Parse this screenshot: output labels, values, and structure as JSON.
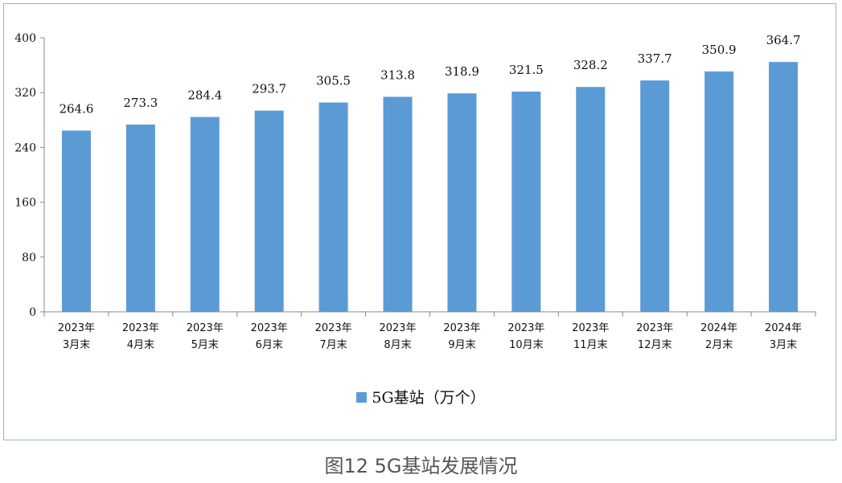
{
  "caption": "图12 5G基站发展情况",
  "chart_data": {
    "type": "bar",
    "categories": [
      [
        "2023年",
        "3月末"
      ],
      [
        "2023年",
        "4月末"
      ],
      [
        "2023年",
        "5月末"
      ],
      [
        "2023年",
        "6月末"
      ],
      [
        "2023年",
        "7月末"
      ],
      [
        "2023年",
        "8月末"
      ],
      [
        "2023年",
        "9月末"
      ],
      [
        "2023年",
        "10月末"
      ],
      [
        "2023年",
        "11月末"
      ],
      [
        "2023年",
        "12月末"
      ],
      [
        "2024年",
        "2月末"
      ],
      [
        "2024年",
        "3月末"
      ]
    ],
    "series": [
      {
        "name": "5G基站（万个）",
        "values": [
          264.6,
          273.3,
          284.4,
          293.7,
          305.5,
          313.8,
          318.9,
          321.5,
          328.2,
          337.7,
          350.9,
          364.7
        ],
        "color": "#5b9bd5"
      }
    ],
    "ylim": [
      0,
      400
    ],
    "yticks": [
      0,
      80,
      160,
      240,
      320,
      400
    ],
    "grid": false,
    "legend_position": "bottom"
  }
}
